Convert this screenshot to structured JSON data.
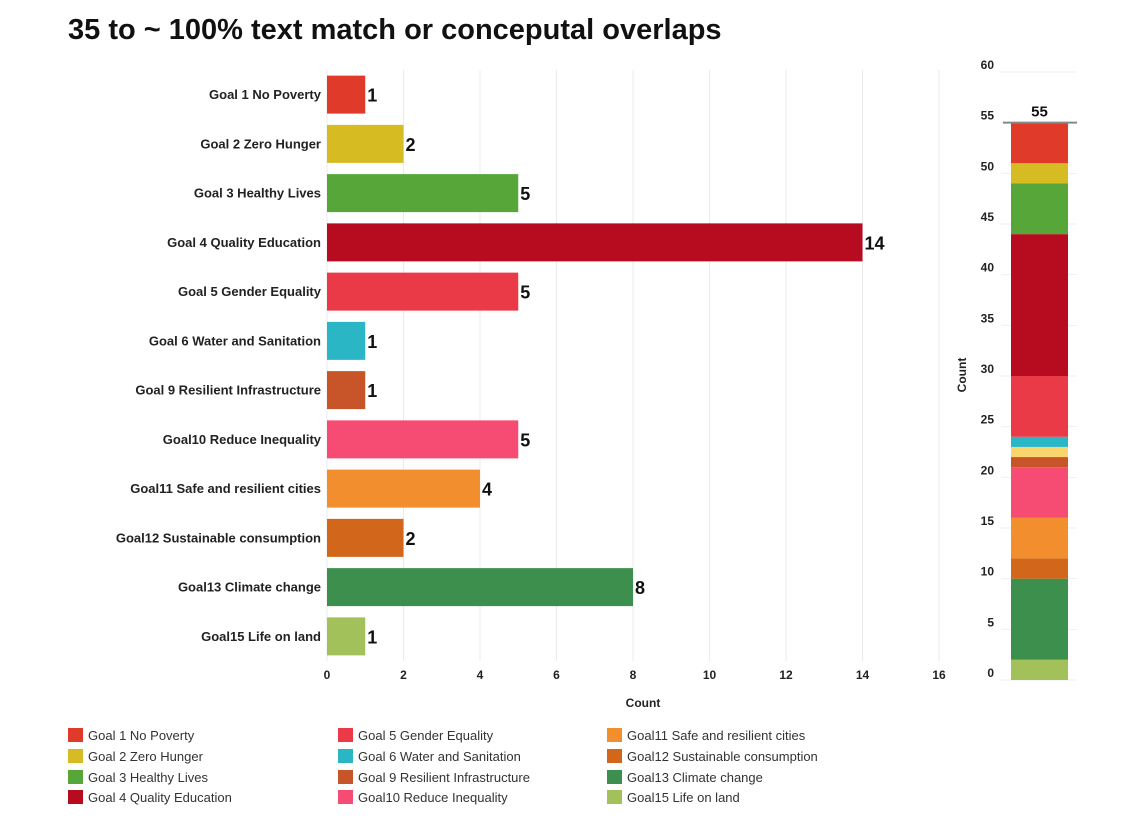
{
  "chart_data": [
    {
      "type": "bar",
      "orientation": "horizontal",
      "title": "35 to ~ 100% text match or conceputal overlaps",
      "xlabel": "Count",
      "xlim": [
        0,
        16
      ],
      "x_ticks": [
        0,
        2,
        4,
        6,
        8,
        10,
        12,
        14,
        16
      ],
      "grid": "vertical",
      "categories": [
        "Goal 1 No Poverty",
        "Goal 2 Zero Hunger",
        "Goal 3  Healthy Lives",
        "Goal 4  Quality Education",
        "Goal 5 Gender Equality",
        "Goal 6 Water and Sanitation",
        "Goal 9 Resilient Infrastructure",
        "Goal10 Reduce Inequality",
        "Goal11 Safe and resilient cities",
        "Goal12 Sustainable consumption",
        "Goal13 Climate change",
        "Goal15 Life on land"
      ],
      "values": [
        1,
        2,
        5,
        14,
        5,
        1,
        1,
        5,
        4,
        2,
        8,
        1
      ],
      "colors": [
        "#e03a2a",
        "#d6bb22",
        "#56a63a",
        "#b70b1f",
        "#ea3a48",
        "#2ab6c5",
        "#c8542a",
        "#f64b72",
        "#f28e2d",
        "#d2661a",
        "#3d8f4d",
        "#a3c15a"
      ]
    },
    {
      "type": "stacked_bar",
      "ylabel": "Count",
      "ylim": [
        0,
        60
      ],
      "y_ticks": [
        0,
        5,
        10,
        15,
        20,
        25,
        30,
        35,
        40,
        45,
        50,
        55,
        60
      ],
      "total": 55,
      "segments": [
        {
          "value": 2,
          "color": "#a3c15a"
        },
        {
          "value": 8,
          "color": "#3d8f4d"
        },
        {
          "value": 2,
          "color": "#d2661a"
        },
        {
          "value": 4,
          "color": "#f28e2d"
        },
        {
          "value": 5,
          "color": "#f64b72"
        },
        {
          "value": 1,
          "color": "#c8542a"
        },
        {
          "value": 1,
          "color": "#f9d56e"
        },
        {
          "value": 1,
          "color": "#2ab6c5"
        },
        {
          "value": 6,
          "color": "#ea3a48"
        },
        {
          "value": 14,
          "color": "#b70b1f"
        },
        {
          "value": 5,
          "color": "#56a63a"
        },
        {
          "value": 2,
          "color": "#d6bb22"
        },
        {
          "value": 4,
          "color": "#e03a2a"
        }
      ]
    }
  ],
  "legend": {
    "placement": "bottom",
    "items": [
      {
        "label": "Goal 1 No Poverty",
        "color": "#e03a2a"
      },
      {
        "label": "Goal 2 Zero Hunger",
        "color": "#d6bb22"
      },
      {
        "label": "Goal 3  Healthy Lives",
        "color": "#56a63a"
      },
      {
        "label": "Goal 4  Quality Education",
        "color": "#b70b1f"
      },
      {
        "label": "Goal 5 Gender Equality",
        "color": "#ea3a48"
      },
      {
        "label": "Goal 6 Water and Sanitation",
        "color": "#2ab6c5"
      },
      {
        "label": "Goal 9 Resilient Infrastructure",
        "color": "#c8542a"
      },
      {
        "label": "Goal10 Reduce Inequality",
        "color": "#f64b72"
      },
      {
        "label": "Goal11 Safe and resilient cities",
        "color": "#f28e2d"
      },
      {
        "label": "Goal12 Sustainable consumption",
        "color": "#d2661a"
      },
      {
        "label": "Goal13 Climate change",
        "color": "#3d8f4d"
      },
      {
        "label": "Goal15 Life on land",
        "color": "#a3c15a"
      }
    ]
  }
}
